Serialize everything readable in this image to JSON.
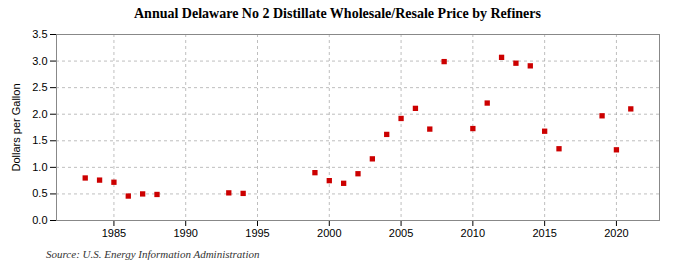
{
  "chart_data": {
    "type": "scatter",
    "title": "Annual Delaware No 2 Distillate Wholesale/Resale Price by Refiners",
    "ylabel": "Dollars per Gallon",
    "source": "Source: U.S. Energy Information Administration",
    "x": [
      1983,
      1984,
      1985,
      1986,
      1987,
      1988,
      1993,
      1994,
      1999,
      2000,
      2001,
      2002,
      2003,
      2004,
      2005,
      2006,
      2007,
      2008,
      2010,
      2011,
      2012,
      2013,
      2014,
      2015,
      2016,
      2019,
      2020,
      2021
    ],
    "values": [
      0.8,
      0.76,
      0.72,
      0.46,
      0.5,
      0.49,
      0.52,
      0.51,
      0.9,
      0.75,
      0.7,
      0.88,
      1.16,
      1.62,
      1.92,
      2.11,
      1.72,
      2.99,
      1.73,
      2.21,
      3.07,
      2.96,
      2.91,
      1.68,
      1.35,
      1.97,
      1.33,
      2.1
    ],
    "color": "#cc0000",
    "marker": "square",
    "xlim": [
      1981,
      2023
    ],
    "xticks": [
      1985,
      1990,
      1995,
      2000,
      2005,
      2010,
      2015,
      2020
    ],
    "ylim": [
      0.0,
      3.5
    ],
    "yticks": [
      {
        "value": 0.0,
        "label": "0.0"
      },
      0.5,
      {
        "value": 1.0,
        "label": "1.0"
      },
      1.5,
      {
        "value": 2.0,
        "label": "2.0"
      },
      2.5,
      {
        "value": 3.0,
        "label": "3.0"
      },
      3.5
    ],
    "grid": true
  }
}
